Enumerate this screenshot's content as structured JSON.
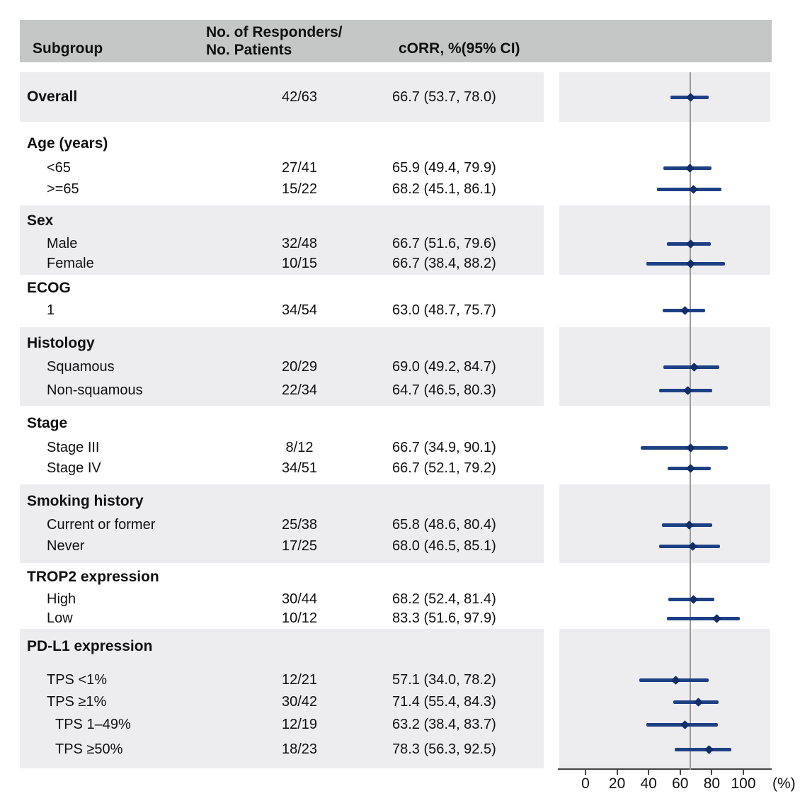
{
  "chart_data": {
    "type": "scatter",
    "variant": "forest_plot",
    "title": "",
    "columns": {
      "subgroup": "Subgroup",
      "responders_line1": "No. of Responders/",
      "responders_line2": "No. Patients",
      "corr": "cORR, %(95% CI)"
    },
    "x_ticks": [
      0,
      20,
      40,
      60,
      80,
      100
    ],
    "axis_unit": "(%)",
    "xlim": [
      0,
      100
    ],
    "reference_line_value": 66.7,
    "legend": "none",
    "grid": false,
    "colors": {
      "bar": "#1d4085",
      "marker": "#132e66",
      "reference_line": "#9a9a9a",
      "axis": "#454545",
      "header_bg": "#c5c6c6",
      "band_bg": "#ededef",
      "text": "#101010"
    },
    "sections": [
      {
        "title": "Overall",
        "shaded": true,
        "title_is_data": true,
        "rows": [
          {
            "label": "Overall",
            "indent": 0,
            "responders": "42/63",
            "corr": "66.7 (53.7, 78.0)",
            "est": 66.7,
            "lo": 53.7,
            "hi": 78.0
          }
        ]
      },
      {
        "title": "Age (years)",
        "shaded": false,
        "rows": [
          {
            "label": "<65",
            "indent": 1,
            "responders": "27/41",
            "corr": "65.9 (49.4, 79.9)",
            "est": 65.9,
            "lo": 49.4,
            "hi": 79.9
          },
          {
            "label": ">=65",
            "indent": 1,
            "responders": "15/22",
            "corr": "68.2 (45.1, 86.1)",
            "est": 68.2,
            "lo": 45.1,
            "hi": 86.1
          }
        ]
      },
      {
        "title": "Sex",
        "shaded": true,
        "rows": [
          {
            "label": "Male",
            "indent": 1,
            "responders": "32/48",
            "corr": "66.7 (51.6, 79.6)",
            "est": 66.7,
            "lo": 51.6,
            "hi": 79.6
          },
          {
            "label": "Female",
            "indent": 1,
            "responders": "10/15",
            "corr": "66.7 (38.4, 88.2)",
            "est": 66.7,
            "lo": 38.4,
            "hi": 88.2
          }
        ]
      },
      {
        "title": "ECOG",
        "shaded": false,
        "rows": [
          {
            "label": "1",
            "indent": 1,
            "responders": "34/54",
            "corr": "63.0 (48.7, 75.7)",
            "est": 63.0,
            "lo": 48.7,
            "hi": 75.7
          }
        ]
      },
      {
        "title": "Histology",
        "shaded": true,
        "rows": [
          {
            "label": "Squamous",
            "indent": 1,
            "responders": "20/29",
            "corr": "69.0 (49.2, 84.7)",
            "est": 69.0,
            "lo": 49.2,
            "hi": 84.7
          },
          {
            "label": "Non-squamous",
            "indent": 1,
            "responders": "22/34",
            "corr": "64.7 (46.5, 80.3)",
            "est": 64.7,
            "lo": 46.5,
            "hi": 80.3
          }
        ]
      },
      {
        "title": "Stage",
        "shaded": false,
        "rows": [
          {
            "label": "Stage III",
            "indent": 1,
            "responders": "8/12",
            "corr": "66.7 (34.9, 90.1)",
            "est": 66.7,
            "lo": 34.9,
            "hi": 90.1
          },
          {
            "label": "Stage IV",
            "indent": 1,
            "responders": "34/51",
            "corr": "66.7 (52.1, 79.2)",
            "est": 66.7,
            "lo": 52.1,
            "hi": 79.2
          }
        ]
      },
      {
        "title": "Smoking history",
        "shaded": true,
        "rows": [
          {
            "label": "Current or former",
            "indent": 1,
            "responders": "25/38",
            "corr": "65.8 (48.6, 80.4)",
            "est": 65.8,
            "lo": 48.6,
            "hi": 80.4
          },
          {
            "label": "Never",
            "indent": 1,
            "responders": "17/25",
            "corr": "68.0 (46.5, 85.1)",
            "est": 68.0,
            "lo": 46.5,
            "hi": 85.1
          }
        ]
      },
      {
        "title": "TROP2 expression",
        "shaded": false,
        "rows": [
          {
            "label": "High",
            "indent": 1,
            "responders": "30/44",
            "corr": "68.2 (52.4, 81.4)",
            "est": 68.2,
            "lo": 52.4,
            "hi": 81.4
          },
          {
            "label": "Low",
            "indent": 1,
            "responders": "10/12",
            "corr": "83.3 (51.6, 97.9)",
            "est": 83.3,
            "lo": 51.6,
            "hi": 97.9
          }
        ]
      },
      {
        "title": "PD-L1 expression",
        "shaded": true,
        "gap_after_title": true,
        "rows": [
          {
            "label": "TPS <1%",
            "indent": 1,
            "responders": "12/21",
            "corr": "57.1 (34.0, 78.2)",
            "est": 57.1,
            "lo": 34.0,
            "hi": 78.2
          },
          {
            "label": "TPS ≥1%",
            "indent": 1,
            "responders": "30/42",
            "corr": "71.4 (55.4, 84.3)",
            "est": 71.4,
            "lo": 55.4,
            "hi": 84.3
          },
          {
            "label": "TPS 1–49%",
            "indent": 2,
            "responders": "12/19",
            "corr": "63.2 (38.4, 83.7)",
            "est": 63.2,
            "lo": 38.4,
            "hi": 83.7
          },
          {
            "label": "TPS ≥50%",
            "indent": 2,
            "responders": "18/23",
            "corr": "78.3 (56.3, 92.5)",
            "est": 78.3,
            "lo": 56.3,
            "hi": 92.5
          }
        ]
      }
    ]
  }
}
